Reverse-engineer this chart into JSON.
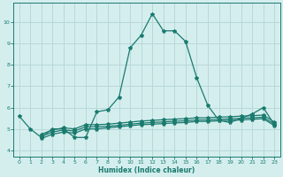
{
  "xlabel": "Humidex (Indice chaleur)",
  "bg_color": "#d4eeee",
  "grid_color": "#b8d8d8",
  "line_color": "#1a7a6e",
  "xlim": [
    -0.5,
    23.5
  ],
  "ylim": [
    3.7,
    10.9
  ],
  "yticks": [
    4,
    5,
    6,
    7,
    8,
    9,
    10
  ],
  "xticks": [
    0,
    1,
    2,
    3,
    4,
    5,
    6,
    7,
    8,
    9,
    10,
    11,
    12,
    13,
    14,
    15,
    16,
    17,
    18,
    19,
    20,
    21,
    22,
    23
  ],
  "line1_x": [
    0,
    1,
    2,
    3,
    4,
    5,
    6,
    7,
    8,
    9,
    10,
    11,
    12,
    13,
    14,
    15,
    16,
    17,
    18,
    19,
    20,
    21,
    22,
    23
  ],
  "line1_y": [
    5.6,
    5.0,
    4.6,
    5.0,
    5.0,
    4.6,
    4.6,
    5.8,
    5.9,
    6.5,
    8.8,
    9.4,
    10.4,
    9.6,
    9.6,
    9.1,
    7.4,
    6.1,
    5.4,
    5.3,
    5.5,
    5.7,
    6.0,
    5.2
  ],
  "line2_x": [
    2,
    3,
    4,
    5,
    6,
    7,
    8,
    9,
    10,
    11,
    12,
    13,
    14,
    15,
    16,
    17,
    18,
    19,
    20,
    21,
    22,
    23
  ],
  "line2_y": [
    4.55,
    4.75,
    4.85,
    4.8,
    5.0,
    5.0,
    5.05,
    5.1,
    5.15,
    5.2,
    5.22,
    5.25,
    5.28,
    5.3,
    5.35,
    5.35,
    5.38,
    5.4,
    5.42,
    5.45,
    5.48,
    5.15
  ],
  "line3_x": [
    2,
    3,
    4,
    5,
    6,
    7,
    8,
    9,
    10,
    11,
    12,
    13,
    14,
    15,
    16,
    17,
    18,
    19,
    20,
    21,
    22,
    23
  ],
  "line3_y": [
    4.65,
    4.85,
    4.95,
    4.9,
    5.1,
    5.1,
    5.12,
    5.17,
    5.22,
    5.27,
    5.3,
    5.33,
    5.36,
    5.38,
    5.42,
    5.42,
    5.45,
    5.47,
    5.5,
    5.52,
    5.55,
    5.22
  ],
  "line4_x": [
    2,
    3,
    4,
    5,
    6,
    7,
    8,
    9,
    10,
    11,
    12,
    13,
    14,
    15,
    16,
    17,
    18,
    19,
    20,
    21,
    22,
    23
  ],
  "line4_y": [
    4.75,
    4.95,
    5.05,
    5.0,
    5.2,
    5.2,
    5.22,
    5.27,
    5.32,
    5.37,
    5.4,
    5.43,
    5.46,
    5.48,
    5.52,
    5.52,
    5.55,
    5.57,
    5.6,
    5.62,
    5.65,
    5.32
  ]
}
